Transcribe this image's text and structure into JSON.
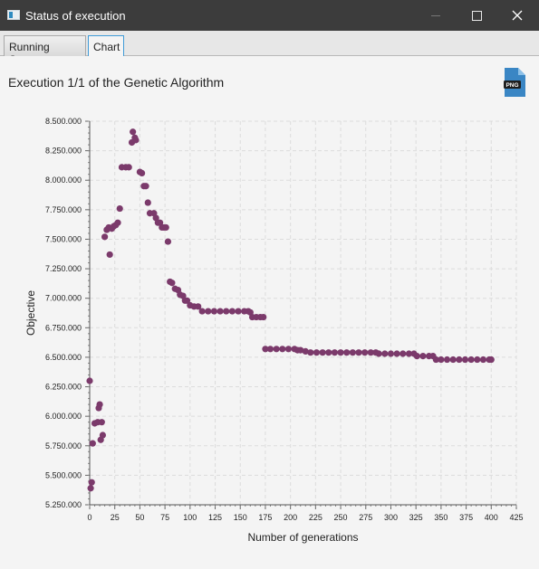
{
  "window": {
    "title": "Status of execution",
    "icon": "app-window-icon",
    "controls": [
      "minimize-icon",
      "maximize-icon",
      "close-icon"
    ]
  },
  "tabs": [
    {
      "label": "Running Status",
      "selected": false
    },
    {
      "label": "Chart",
      "selected": true
    }
  ],
  "chart_title": "Execution 1/1 of the Genetic Algorithm",
  "export_icon": {
    "name": "png-file-icon",
    "label": "PNG"
  },
  "colors": {
    "series": "#7b3a6b",
    "grid": "#dcdcdc",
    "accent": "#3f9bd8"
  },
  "chart_data": {
    "type": "scatter",
    "xlabel": "Number of generations",
    "ylabel": "Objective",
    "xlim": [
      0,
      425
    ],
    "ylim": [
      5250000,
      8500000
    ],
    "x_ticks": [
      0,
      25,
      50,
      75,
      100,
      125,
      150,
      175,
      200,
      225,
      250,
      275,
      300,
      325,
      350,
      375,
      400,
      425
    ],
    "y_ticks": [
      5250000,
      5500000,
      5750000,
      6000000,
      6250000,
      6500000,
      6750000,
      7000000,
      7250000,
      7500000,
      7750000,
      8000000,
      8250000,
      8500000
    ],
    "y_tick_labels": [
      "5.250.000",
      "5.500.000",
      "5.750.000",
      "6.000.000",
      "6.250.000",
      "6.500.000",
      "6.750.000",
      "7.000.000",
      "7.250.000",
      "7.500.000",
      "7.750.000",
      "8.000.000",
      "8.250.000",
      "8.500.000"
    ],
    "grid": true,
    "legend": "none",
    "series": [
      {
        "points": [
          [
            0,
            6300000
          ],
          [
            1,
            5390000
          ],
          [
            2,
            5440000
          ],
          [
            3,
            5770000
          ],
          [
            5,
            5940000
          ],
          [
            8,
            5950000
          ],
          [
            9,
            6070000
          ],
          [
            10,
            6100000
          ],
          [
            11,
            5800000
          ],
          [
            12,
            5950000
          ],
          [
            13,
            5840000
          ],
          [
            15,
            7520000
          ],
          [
            17,
            7580000
          ],
          [
            19,
            7600000
          ],
          [
            20,
            7370000
          ],
          [
            22,
            7590000
          ],
          [
            24,
            7610000
          ],
          [
            26,
            7620000
          ],
          [
            28,
            7640000
          ],
          [
            30,
            7760000
          ],
          [
            32,
            8110000
          ],
          [
            36,
            8110000
          ],
          [
            39,
            8110000
          ],
          [
            42,
            8320000
          ],
          [
            43,
            8410000
          ],
          [
            45,
            8360000
          ],
          [
            46,
            8340000
          ],
          [
            50,
            8070000
          ],
          [
            52,
            8060000
          ],
          [
            54,
            7950000
          ],
          [
            56,
            7950000
          ],
          [
            58,
            7810000
          ],
          [
            60,
            7720000
          ],
          [
            64,
            7720000
          ],
          [
            66,
            7680000
          ],
          [
            68,
            7640000
          ],
          [
            70,
            7640000
          ],
          [
            72,
            7600000
          ],
          [
            74,
            7600000
          ],
          [
            76,
            7600000
          ],
          [
            78,
            7480000
          ],
          [
            80,
            7140000
          ],
          [
            82,
            7130000
          ],
          [
            85,
            7080000
          ],
          [
            88,
            7070000
          ],
          [
            90,
            7030000
          ],
          [
            93,
            7020000
          ],
          [
            95,
            6980000
          ],
          [
            97,
            6980000
          ],
          [
            100,
            6940000
          ],
          [
            104,
            6930000
          ],
          [
            108,
            6930000
          ],
          [
            112,
            6890000
          ],
          [
            118,
            6890000
          ],
          [
            124,
            6890000
          ],
          [
            130,
            6890000
          ],
          [
            136,
            6890000
          ],
          [
            142,
            6890000
          ],
          [
            148,
            6890000
          ],
          [
            154,
            6890000
          ],
          [
            158,
            6890000
          ],
          [
            160,
            6880000
          ],
          [
            162,
            6840000
          ],
          [
            166,
            6840000
          ],
          [
            170,
            6840000
          ],
          [
            173,
            6840000
          ],
          [
            175,
            6570000
          ],
          [
            180,
            6570000
          ],
          [
            186,
            6570000
          ],
          [
            192,
            6570000
          ],
          [
            198,
            6570000
          ],
          [
            204,
            6570000
          ],
          [
            207,
            6560000
          ],
          [
            210,
            6560000
          ],
          [
            215,
            6550000
          ],
          [
            220,
            6540000
          ],
          [
            226,
            6540000
          ],
          [
            232,
            6540000
          ],
          [
            238,
            6540000
          ],
          [
            244,
            6540000
          ],
          [
            250,
            6540000
          ],
          [
            256,
            6540000
          ],
          [
            262,
            6540000
          ],
          [
            268,
            6540000
          ],
          [
            274,
            6540000
          ],
          [
            280,
            6540000
          ],
          [
            285,
            6540000
          ],
          [
            288,
            6530000
          ],
          [
            294,
            6530000
          ],
          [
            300,
            6530000
          ],
          [
            306,
            6530000
          ],
          [
            312,
            6530000
          ],
          [
            318,
            6530000
          ],
          [
            323,
            6530000
          ],
          [
            326,
            6510000
          ],
          [
            332,
            6510000
          ],
          [
            338,
            6510000
          ],
          [
            342,
            6510000
          ],
          [
            345,
            6480000
          ],
          [
            350,
            6480000
          ],
          [
            356,
            6480000
          ],
          [
            362,
            6480000
          ],
          [
            368,
            6480000
          ],
          [
            374,
            6480000
          ],
          [
            380,
            6480000
          ],
          [
            386,
            6480000
          ],
          [
            392,
            6480000
          ],
          [
            398,
            6480000
          ],
          [
            400,
            6480000
          ]
        ]
      }
    ]
  }
}
